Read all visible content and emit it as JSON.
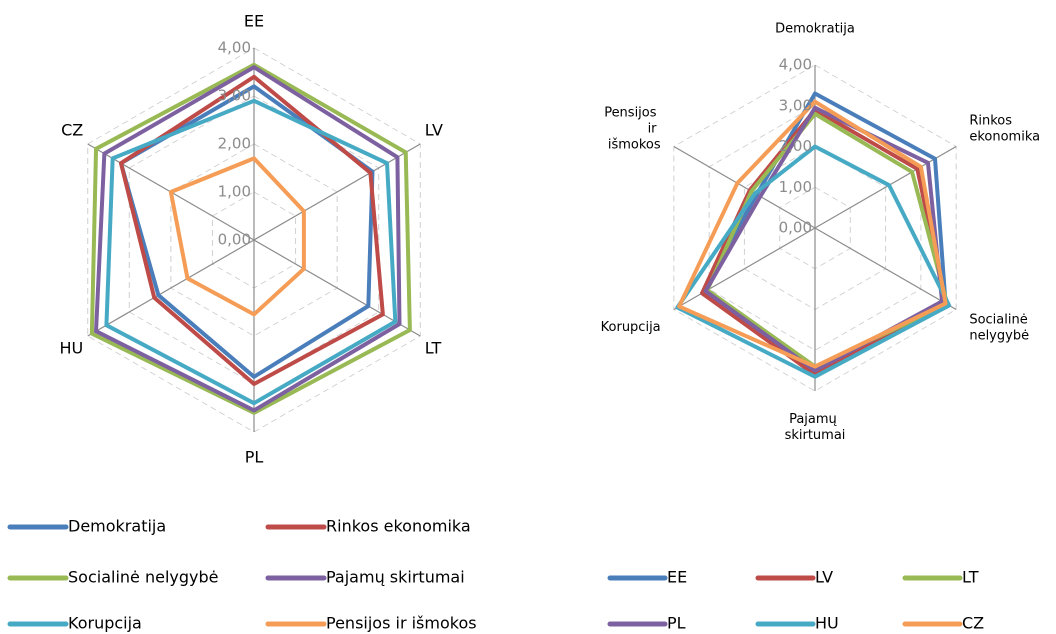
{
  "chart_data": [
    {
      "type": "radar",
      "categories": [
        "EE",
        "LV",
        "LT",
        "PL",
        "HU",
        "CZ"
      ],
      "ylim": [
        0,
        4
      ],
      "yticks": [
        {
          "value": 0,
          "label": "0,00"
        },
        {
          "value": 1,
          "label": "1,00"
        },
        {
          "value": 2,
          "label": "2,00"
        },
        {
          "value": 3,
          "label": "3,00"
        },
        {
          "value": 4,
          "label": "4,00"
        }
      ],
      "grid": true,
      "series": [
        {
          "name": "Demokratija",
          "color": "#4a7ebb",
          "values": [
            3.2,
            2.85,
            2.75,
            2.85,
            2.3,
            3.2
          ]
        },
        {
          "name": "Rinkos ekonomika",
          "color": "#be4b48",
          "values": [
            3.4,
            2.8,
            3.1,
            3.0,
            2.4,
            3.2
          ]
        },
        {
          "name": "Socialinė nelygybė",
          "color": "#98b954",
          "values": [
            3.65,
            3.65,
            3.75,
            3.6,
            3.9,
            3.8
          ]
        },
        {
          "name": "Pajamų skirtumai",
          "color": "#7d60a0",
          "values": [
            3.6,
            3.45,
            3.5,
            3.55,
            3.8,
            3.6
          ]
        },
        {
          "name": "Korupcija",
          "color": "#46aac5",
          "values": [
            2.9,
            3.2,
            3.4,
            3.4,
            3.55,
            3.4
          ]
        },
        {
          "name": "Pensijos ir išmokos",
          "color": "#f59d56",
          "values": [
            1.7,
            1.2,
            1.2,
            1.55,
            1.6,
            2.0
          ]
        }
      ]
    },
    {
      "type": "radar",
      "categories": [
        "Demokratija",
        "Rinkos ekonomika",
        "Socialinė nelygybė",
        "Pajamų skirtumai",
        "Korupcija",
        "Pensijos ir išmokos"
      ],
      "ylim": [
        0,
        4
      ],
      "yticks": [
        {
          "value": 0,
          "label": "0,00"
        },
        {
          "value": 1,
          "label": "1,00"
        },
        {
          "value": 2,
          "label": "2,00"
        },
        {
          "value": 3,
          "label": "3,00"
        },
        {
          "value": 4,
          "label": "4,00"
        }
      ],
      "grid": true,
      "series": [
        {
          "name": "EE",
          "color": "#4a7ebb",
          "values": [
            3.3,
            3.4,
            3.7,
            3.5,
            3.2,
            1.65
          ]
        },
        {
          "name": "LV",
          "color": "#be4b48",
          "values": [
            2.9,
            2.9,
            3.7,
            3.6,
            3.2,
            1.85
          ]
        },
        {
          "name": "LT",
          "color": "#98b954",
          "values": [
            2.8,
            2.75,
            3.75,
            3.4,
            3.05,
            1.8
          ]
        },
        {
          "name": "PL",
          "color": "#7d60a0",
          "values": [
            2.95,
            3.2,
            3.6,
            3.5,
            3.1,
            1.55
          ]
        },
        {
          "name": "HU",
          "color": "#46aac5",
          "values": [
            2.0,
            2.1,
            3.8,
            3.65,
            3.9,
            1.7
          ]
        },
        {
          "name": "CZ",
          "color": "#f59d56",
          "values": [
            3.1,
            3.0,
            3.7,
            3.4,
            3.85,
            2.2
          ]
        }
      ]
    }
  ]
}
